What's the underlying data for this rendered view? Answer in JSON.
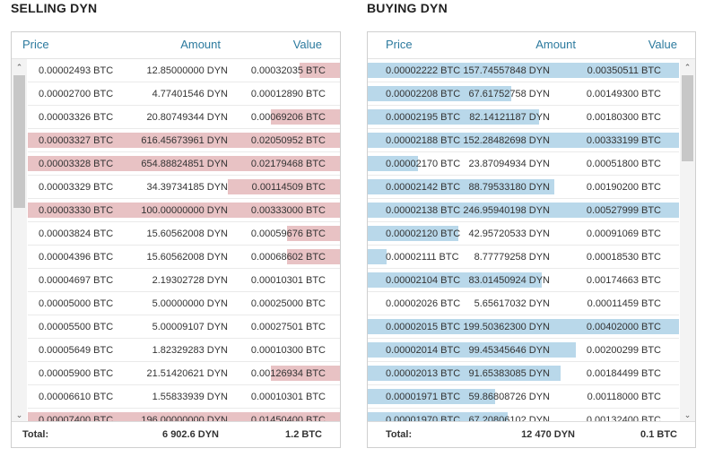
{
  "selling": {
    "title": "SELLING DYN",
    "headers": {
      "price": "Price",
      "amount": "Amount",
      "value": "Value"
    },
    "rows": [
      {
        "price": "0.00002493 BTC",
        "amount": "12.85000000 DYN",
        "value": "0.00032035 BTC",
        "depth": 0.13
      },
      {
        "price": "0.00002700 BTC",
        "amount": "4.77401546 DYN",
        "value": "0.00012890 BTC",
        "depth": 0
      },
      {
        "price": "0.00003326 BTC",
        "amount": "20.80749344 DYN",
        "value": "0.00069206 BTC",
        "depth": 0.22
      },
      {
        "price": "0.00003327 BTC",
        "amount": "616.45673961 DYN",
        "value": "0.02050952 BTC",
        "depth": 1
      },
      {
        "price": "0.00003328 BTC",
        "amount": "654.88824851 DYN",
        "value": "0.02179468 BTC",
        "depth": 1
      },
      {
        "price": "0.00003329 BTC",
        "amount": "34.39734185 DYN",
        "value": "0.00114509 BTC",
        "depth": 0.36
      },
      {
        "price": "0.00003330 BTC",
        "amount": "100.00000000 DYN",
        "value": "0.00333000 BTC",
        "depth": 1
      },
      {
        "price": "0.00003824 BTC",
        "amount": "15.60562008 DYN",
        "value": "0.00059676 BTC",
        "depth": 0.17
      },
      {
        "price": "0.00004396 BTC",
        "amount": "15.60562008 DYN",
        "value": "0.00068602 BTC",
        "depth": 0.17
      },
      {
        "price": "0.00004697 BTC",
        "amount": "2.19302728 DYN",
        "value": "0.00010301 BTC",
        "depth": 0
      },
      {
        "price": "0.00005000 BTC",
        "amount": "5.00000000 DYN",
        "value": "0.00025000 BTC",
        "depth": 0
      },
      {
        "price": "0.00005500 BTC",
        "amount": "5.00009107 DYN",
        "value": "0.00027501 BTC",
        "depth": 0
      },
      {
        "price": "0.00005649 BTC",
        "amount": "1.82329283 DYN",
        "value": "0.00010300 BTC",
        "depth": 0
      },
      {
        "price": "0.00005900 BTC",
        "amount": "21.51420621 DYN",
        "value": "0.00126934 BTC",
        "depth": 0.22
      },
      {
        "price": "0.00006610 BTC",
        "amount": "1.55833939 DYN",
        "value": "0.00010301 BTC",
        "depth": 0
      },
      {
        "price": "0.00007400 BTC",
        "amount": "196.00000000 DYN",
        "value": "0.01450400 BTC",
        "depth": 1
      }
    ],
    "total": {
      "label": "Total:",
      "amount": "6 902.6 DYN",
      "value": "1.2 BTC"
    },
    "scroll_position": 0,
    "scroll_visible_fraction": 0.4
  },
  "buying": {
    "title": "BUYING DYN",
    "headers": {
      "price": "Price",
      "amount": "Amount",
      "value": "Value"
    },
    "rows": [
      {
        "price": "0.00002222 BTC",
        "amount": "157.74557848 DYN",
        "value": "0.00350511 BTC",
        "depth": 1
      },
      {
        "price": "0.00002208 BTC",
        "amount": "67.61752758 DYN",
        "value": "0.00149300 BTC",
        "depth": 0.46
      },
      {
        "price": "0.00002195 BTC",
        "amount": "82.14121187 DYN",
        "value": "0.00180300 BTC",
        "depth": 0.55
      },
      {
        "price": "0.00002188 BTC",
        "amount": "152.28482698 DYN",
        "value": "0.00333199 BTC",
        "depth": 1
      },
      {
        "price": "0.00002170 BTC",
        "amount": "23.87094934 DYN",
        "value": "0.00051800 BTC",
        "depth": 0.16
      },
      {
        "price": "0.00002142 BTC",
        "amount": "88.79533180 DYN",
        "value": "0.00190200 BTC",
        "depth": 0.6
      },
      {
        "price": "0.00002138 BTC",
        "amount": "246.95940198 DYN",
        "value": "0.00527999 BTC",
        "depth": 1
      },
      {
        "price": "0.00002120 BTC",
        "amount": "42.95720533 DYN",
        "value": "0.00091069 BTC",
        "depth": 0.29
      },
      {
        "price": "0.00002111 BTC",
        "amount": "8.77779258 DYN",
        "value": "0.00018530 BTC",
        "depth": 0.06
      },
      {
        "price": "0.00002104 BTC",
        "amount": "83.01450924 DYN",
        "value": "0.00174663 BTC",
        "depth": 0.56
      },
      {
        "price": "0.00002026 BTC",
        "amount": "5.65617032 DYN",
        "value": "0.00011459 BTC",
        "depth": 0
      },
      {
        "price": "0.00002015 BTC",
        "amount": "199.50362300 DYN",
        "value": "0.00402000 BTC",
        "depth": 1
      },
      {
        "price": "0.00002014 BTC",
        "amount": "99.45345646 DYN",
        "value": "0.00200299 BTC",
        "depth": 0.67
      },
      {
        "price": "0.00002013 BTC",
        "amount": "91.65383085 DYN",
        "value": "0.00184499 BTC",
        "depth": 0.62
      },
      {
        "price": "0.00001971 BTC",
        "amount": "59.86808726 DYN",
        "value": "0.00118000 BTC",
        "depth": 0.41
      },
      {
        "price": "0.00001970 BTC",
        "amount": "67.20806102 DYN",
        "value": "0.00132400 BTC",
        "depth": 0.45
      }
    ],
    "total": {
      "label": "Total:",
      "amount": "12 470 DYN",
      "value": "0.1 BTC"
    },
    "scroll_position": 0,
    "scroll_visible_fraction": 0.26
  },
  "colors": {
    "sell_bar": "#e8c2c4",
    "buy_bar": "#b9d8ea",
    "header_text": "#2c7a9e"
  },
  "icons": {
    "scroll_up": "chevron-up-icon",
    "scroll_down": "chevron-down-icon"
  }
}
